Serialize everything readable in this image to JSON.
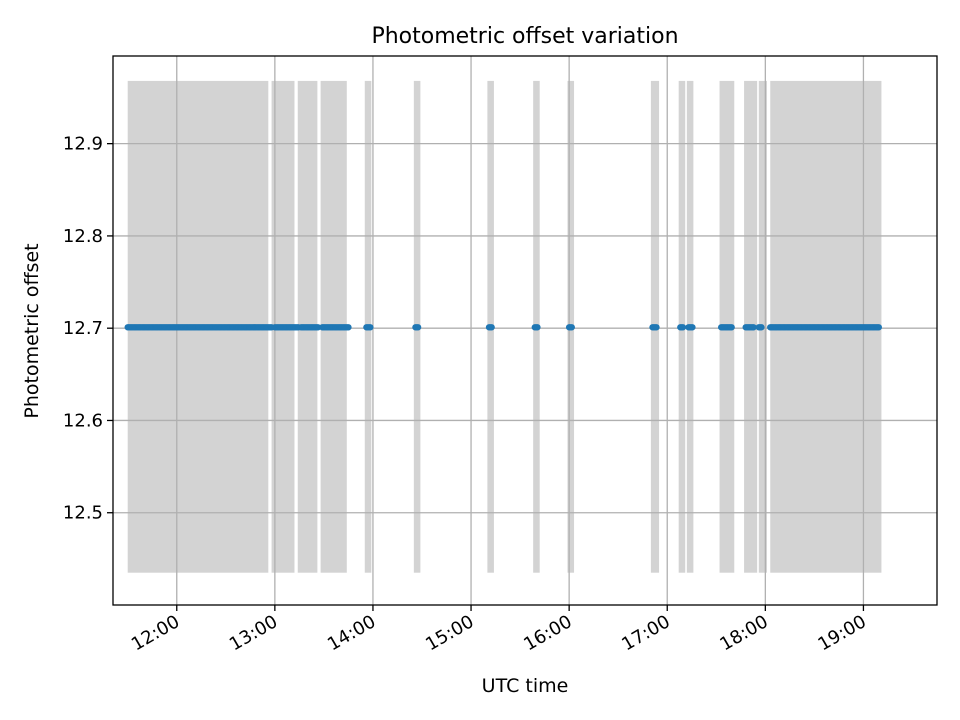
{
  "chart_data": {
    "type": "scatter",
    "title": "Photometric offset variation",
    "xlabel": "UTC time",
    "ylabel": "Photometric offset",
    "xlim": [
      "11:21",
      "19:45"
    ],
    "ylim": [
      12.4,
      12.995
    ],
    "x_ticks": [
      "12:00",
      "13:00",
      "14:00",
      "15:00",
      "16:00",
      "17:00",
      "18:00",
      "19:00"
    ],
    "y_ticks": [
      12.5,
      12.6,
      12.7,
      12.8,
      12.9
    ],
    "grid": true,
    "colors": {
      "points": "#1f77b4",
      "bands": "#d3d3d3",
      "grid": "#b0b0b0"
    },
    "bands": {
      "y_range": [
        12.435,
        12.968
      ],
      "intervals": [
        [
          "11:30",
          "12:56"
        ],
        [
          "12:58",
          "13:12"
        ],
        [
          "13:14",
          "13:26"
        ],
        [
          "13:28",
          "13:44"
        ],
        [
          "13:55",
          "13:59"
        ],
        [
          "14:25",
          "14:29"
        ],
        [
          "15:10",
          "15:14"
        ],
        [
          "15:38",
          "15:42"
        ],
        [
          "15:59",
          "16:03"
        ],
        [
          "16:50",
          "16:55"
        ],
        [
          "17:07",
          "17:11"
        ],
        [
          "17:12",
          "17:16"
        ],
        [
          "17:32",
          "17:41"
        ],
        [
          "17:47",
          "17:55"
        ],
        [
          "17:56",
          "18:01"
        ],
        [
          "18:03",
          "19:11"
        ]
      ]
    },
    "series": [
      {
        "y": 12.701,
        "segments": [
          [
            "11:30",
            "12:58"
          ],
          [
            "13:00",
            "13:15"
          ],
          [
            "13:16",
            "13:27"
          ],
          [
            "13:29",
            "13:45"
          ],
          [
            "13:56",
            "13:59"
          ],
          [
            "14:26",
            "14:28"
          ],
          [
            "15:11",
            "15:13"
          ],
          [
            "15:39",
            "15:41"
          ],
          [
            "16:00",
            "16:02"
          ],
          [
            "16:51",
            "16:54"
          ],
          [
            "17:08",
            "17:10"
          ],
          [
            "17:13",
            "17:16"
          ],
          [
            "17:33",
            "17:40"
          ],
          [
            "17:48",
            "17:53"
          ],
          [
            "17:56",
            "17:58"
          ],
          [
            "18:03",
            "19:10"
          ]
        ]
      }
    ]
  }
}
